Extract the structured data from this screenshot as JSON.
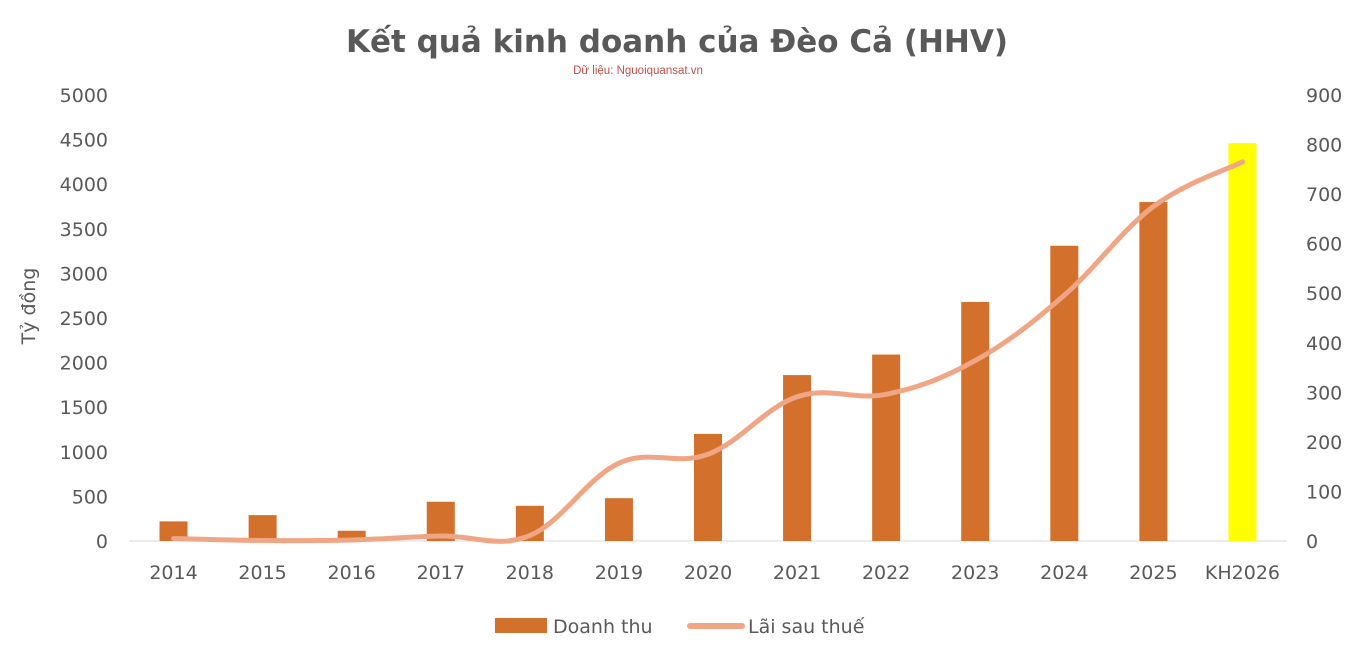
{
  "chart_data": {
    "type": "bar",
    "title": "Kết quả kinh doanh của Đèo Cả (HHV)",
    "subtitle": "Dữ liệu: Nguoiquansat.vn",
    "ylabel": "Tỷ đồng",
    "categories": [
      "2014",
      "2015",
      "2016",
      "2017",
      "2018",
      "2019",
      "2020",
      "2021",
      "2022",
      "2023",
      "2024",
      "2025",
      "KH2026"
    ],
    "ylim": [
      0,
      5000
    ],
    "y_ticks": [
      "0",
      "500",
      "1000",
      "1500",
      "2000",
      "2500",
      "3000",
      "3500",
      "4000",
      "4500",
      "5000"
    ],
    "y2lim": [
      0,
      900
    ],
    "y2_ticks": [
      "0",
      "100",
      "200",
      "300",
      "400",
      "500",
      "600",
      "700",
      "800",
      "900"
    ],
    "grid": false,
    "legend_position": "bottom",
    "series": [
      {
        "name": "Doanh thu",
        "type": "bar",
        "axis": "left",
        "color": "#d2702c",
        "values": [
          220,
          290,
          115,
          440,
          395,
          480,
          1200,
          1860,
          2090,
          2680,
          3310,
          3800,
          4460
        ],
        "highlight": {
          "index": 12,
          "color": "#ffff00"
        }
      },
      {
        "name": "Lãi sau thuế",
        "type": "line",
        "axis": "right",
        "color": "#f0a685",
        "values": [
          5,
          1,
          2,
          10,
          11,
          157,
          175,
          291,
          296,
          364,
          496,
          675,
          765
        ]
      }
    ]
  }
}
